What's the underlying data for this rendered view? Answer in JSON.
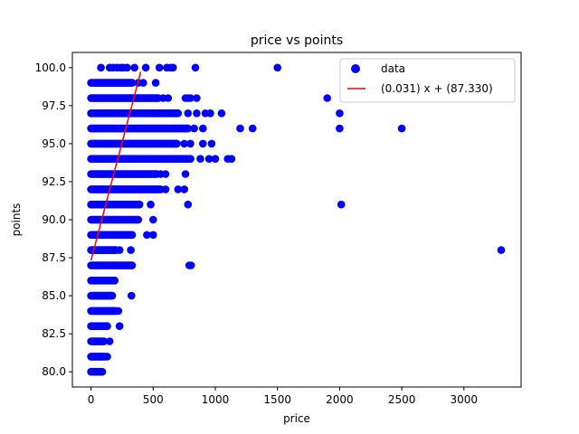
{
  "chart_data": {
    "type": "scatter",
    "title": "price vs points",
    "xlabel": "price",
    "ylabel": "points",
    "xlim": [
      -150,
      3460
    ],
    "ylim": [
      79.0,
      101.0
    ],
    "x_ticks": [
      0,
      500,
      1000,
      1500,
      2000,
      2500,
      3000
    ],
    "x_tick_labels": [
      "0",
      "500",
      "1000",
      "1500",
      "2000",
      "2500",
      "3000"
    ],
    "y_ticks": [
      80.0,
      82.5,
      85.0,
      87.5,
      90.0,
      92.5,
      95.0,
      97.5,
      100.0
    ],
    "y_tick_labels": [
      "80.0",
      "82.5",
      "85.0",
      "87.5",
      "90.0",
      "92.5",
      "95.0",
      "97.5",
      "100.0"
    ],
    "grid": false,
    "legend_position": "top-right",
    "series": [
      {
        "name": "data",
        "kind": "scatter",
        "color": "#0000ff",
        "rows": [
          {
            "y": 80,
            "xmax": 90,
            "sparse": []
          },
          {
            "y": 81,
            "xmax": 110,
            "sparse": [
              130
            ]
          },
          {
            "y": 82,
            "xmax": 105,
            "sparse": [
              150
            ]
          },
          {
            "y": 83,
            "xmax": 130,
            "sparse": [
              230
            ]
          },
          {
            "y": 84,
            "xmax": 200,
            "sparse": [
              220
            ]
          },
          {
            "y": 85,
            "xmax": 170,
            "sparse": [
              325
            ]
          },
          {
            "y": 86,
            "xmax": 190,
            "sparse": []
          },
          {
            "y": 87,
            "xmax": 330,
            "sparse": [
              790,
              805
            ]
          },
          {
            "y": 88,
            "xmax": 200,
            "sparse": [
              230,
              320,
              3300
            ]
          },
          {
            "y": 89,
            "xmax": 330,
            "sparse": [
              450,
              500
            ]
          },
          {
            "y": 90,
            "xmax": 380,
            "sparse": [
              500
            ]
          },
          {
            "y": 91,
            "xmax": 390,
            "sparse": [
              480,
              780,
              2013
            ]
          },
          {
            "y": 92,
            "xmax": 560,
            "sparse": [
              600,
              700,
              750
            ]
          },
          {
            "y": 93,
            "xmax": 530,
            "sparse": [
              560,
              600,
              760
            ]
          },
          {
            "y": 94,
            "xmax": 800,
            "sparse": [
              880,
              950,
              1000,
              1100,
              1130
            ]
          },
          {
            "y": 95,
            "xmax": 690,
            "sparse": [
              750,
              800,
              900,
              970
            ]
          },
          {
            "y": 96,
            "xmax": 780,
            "sparse": [
              830,
              900,
              1200,
              1300,
              2000,
              2500
            ]
          },
          {
            "y": 97,
            "xmax": 700,
            "sparse": [
              780,
              850,
              920,
              960,
              1050,
              2000
            ]
          },
          {
            "y": 98,
            "xmax": 540,
            "sparse": [
              580,
              620,
              760,
              780,
              800,
              850,
              1900
            ]
          },
          {
            "y": 99,
            "xmax": 330,
            "sparse": [
              380,
              420,
              520
            ]
          },
          {
            "y": 100,
            "xmax": 0,
            "sparse": [
              80,
              150,
              180,
              210,
              240,
              260,
              290,
              350,
              440,
              550,
              610,
              640,
              660,
              840,
              1500
            ]
          }
        ]
      },
      {
        "name": "(0.031) x + (87.330)",
        "kind": "line",
        "color": "#ff0000",
        "slope": 0.031,
        "intercept": 87.33,
        "x": [
          0,
          400
        ]
      }
    ]
  }
}
